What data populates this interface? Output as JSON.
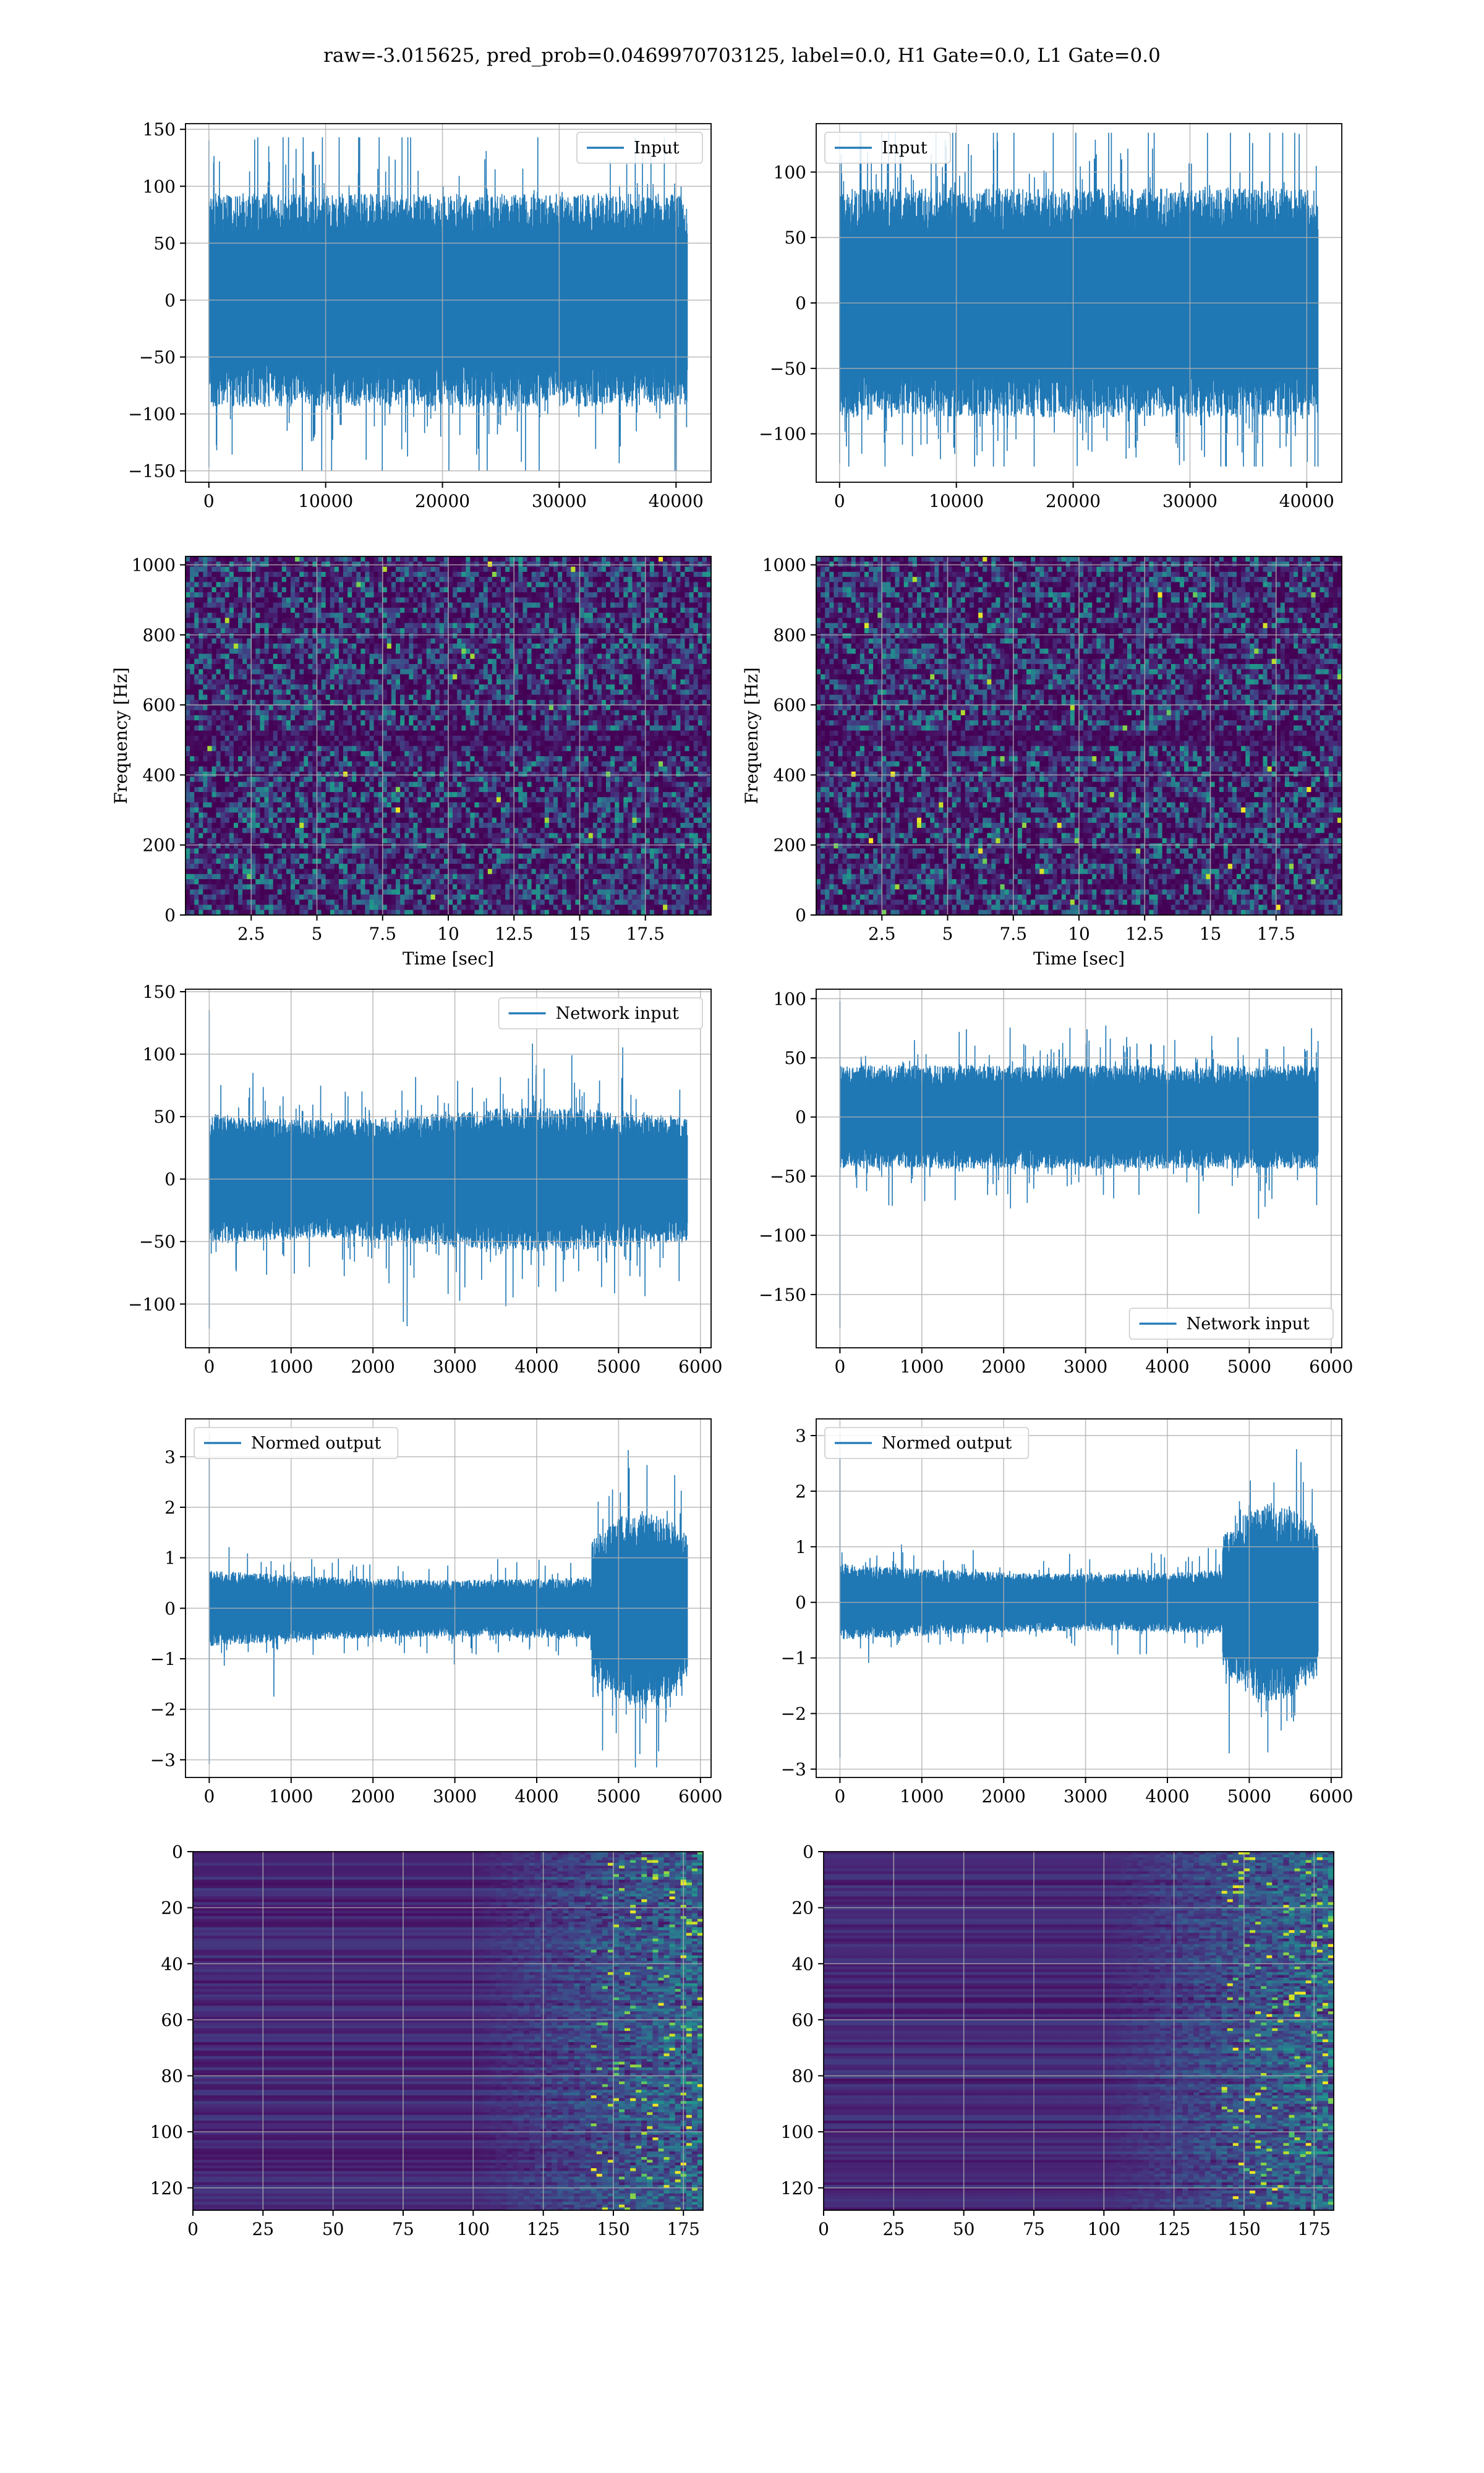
{
  "figure": {
    "suptitle": "raw=-3.015625, pred_prob=0.0469970703125, label=0.0, H1 Gate=0.0, L1 Gate=0.0"
  },
  "colors": {
    "line": "#1f77b4",
    "grid": "#b0b0b0",
    "viridis": [
      "#440154",
      "#482878",
      "#3e4989",
      "#31688e",
      "#26828e",
      "#1f9e89",
      "#35b779",
      "#6ece58",
      "#b5de2b",
      "#fde725"
    ]
  },
  "chart_data": [
    {
      "id": "p1",
      "type": "line",
      "legend": [
        "Input"
      ],
      "legend_loc": "upper right",
      "xlim": [
        -2000,
        43000
      ],
      "ylim": [
        -160,
        155
      ],
      "xticks": [
        0,
        10000,
        20000,
        30000,
        40000
      ],
      "yticks": [
        -150,
        -100,
        -50,
        0,
        50,
        100,
        150
      ],
      "xlabel": "",
      "ylabel": "",
      "grid": true,
      "signal": {
        "n": 40960,
        "x_start": 0,
        "x_end": 40960,
        "band": 75,
        "ymin": -150,
        "ymax": 143
      }
    },
    {
      "id": "p2",
      "type": "line",
      "legend": [
        "Input"
      ],
      "legend_loc": "upper left",
      "xlim": [
        -2000,
        43000
      ],
      "ylim": [
        -137,
        137
      ],
      "xticks": [
        0,
        10000,
        20000,
        30000,
        40000
      ],
      "yticks": [
        -100,
        -50,
        0,
        50,
        100
      ],
      "xlabel": "",
      "ylabel": "",
      "grid": true,
      "signal": {
        "n": 40960,
        "x_start": 0,
        "x_end": 40960,
        "band": 70,
        "ymin": -125,
        "ymax": 130
      }
    },
    {
      "id": "p3",
      "type": "heatmap",
      "xlim": [
        0,
        20
      ],
      "ylim": [
        0,
        1024
      ],
      "xticks": [
        2.5,
        5.0,
        7.5,
        10.0,
        12.5,
        15.0,
        17.5
      ],
      "yticks": [
        0,
        200,
        400,
        600,
        800,
        1000
      ],
      "xlabel": "Time [sec]",
      "ylabel": "Frequency [Hz]",
      "grid": true,
      "colormap": "viridis"
    },
    {
      "id": "p4",
      "type": "heatmap",
      "xlim": [
        0,
        20
      ],
      "ylim": [
        0,
        1024
      ],
      "xticks": [
        2.5,
        5.0,
        7.5,
        10.0,
        12.5,
        15.0,
        17.5
      ],
      "yticks": [
        0,
        200,
        400,
        600,
        800,
        1000
      ],
      "xlabel": "Time [sec]",
      "ylabel": "Frequency [Hz]",
      "grid": true,
      "colormap": "viridis"
    },
    {
      "id": "p5",
      "type": "line",
      "legend": [
        "Network input"
      ],
      "legend_loc": "upper right",
      "xlim": [
        -290,
        6130
      ],
      "ylim": [
        -135,
        152
      ],
      "xticks": [
        0,
        1000,
        2000,
        3000,
        4000,
        5000,
        6000
      ],
      "yticks": [
        -100,
        -50,
        0,
        50,
        100,
        150
      ],
      "xlabel": "",
      "ylabel": "",
      "grid": true,
      "signal": {
        "n": 5840,
        "x_start": 0,
        "x_end": 5840,
        "band": 40,
        "ymin": -122,
        "ymax": 138
      }
    },
    {
      "id": "p6",
      "type": "line",
      "legend": [
        "Network input"
      ],
      "legend_loc": "lower right",
      "xlim": [
        -290,
        6130
      ],
      "ylim": [
        -195,
        108
      ],
      "xticks": [
        0,
        1000,
        2000,
        3000,
        4000,
        5000,
        6000
      ],
      "yticks": [
        -150,
        -100,
        -50,
        0,
        50,
        100
      ],
      "xlabel": "",
      "ylabel": "",
      "grid": true,
      "signal": {
        "n": 5840,
        "x_start": 0,
        "x_end": 5840,
        "band": 35,
        "ymin": -182,
        "ymax": 100
      }
    },
    {
      "id": "p7",
      "type": "line",
      "legend": [
        "Normed output"
      ],
      "legend_loc": "upper left",
      "xlim": [
        -290,
        6130
      ],
      "ylim": [
        -3.35,
        3.75
      ],
      "xticks": [
        0,
        1000,
        2000,
        3000,
        4000,
        5000,
        6000
      ],
      "yticks": [
        -3,
        -2,
        -1,
        0,
        1,
        2,
        3
      ],
      "xlabel": "",
      "ylabel": "",
      "grid": true,
      "signal": {
        "n": 5840,
        "x_start": 0,
        "x_end": 5840,
        "band": 0.6,
        "ymin": -3.15,
        "ymax": 3.52
      }
    },
    {
      "id": "p8",
      "type": "line",
      "legend": [
        "Normed output"
      ],
      "legend_loc": "upper left",
      "xlim": [
        -290,
        6130
      ],
      "ylim": [
        -3.15,
        3.3
      ],
      "xticks": [
        0,
        1000,
        2000,
        3000,
        4000,
        5000,
        6000
      ],
      "yticks": [
        -3,
        -2,
        -1,
        0,
        1,
        2,
        3
      ],
      "xlabel": "",
      "ylabel": "",
      "grid": true,
      "signal": {
        "n": 5840,
        "x_start": 0,
        "x_end": 5840,
        "band": 0.55,
        "ymin": -2.85,
        "ymax": 3.1
      }
    },
    {
      "id": "p9",
      "type": "heatmap",
      "xlim": [
        0,
        182
      ],
      "ylim": [
        128,
        0
      ],
      "xticks": [
        0,
        25,
        50,
        75,
        100,
        125,
        150,
        175
      ],
      "yticks": [
        0,
        20,
        40,
        60,
        80,
        100,
        120
      ],
      "xlabel": "",
      "ylabel": "",
      "grid": true,
      "colormap": "viridis"
    },
    {
      "id": "p10",
      "type": "heatmap",
      "xlim": [
        0,
        182
      ],
      "ylim": [
        128,
        0
      ],
      "xticks": [
        0,
        25,
        50,
        75,
        100,
        125,
        150,
        175
      ],
      "yticks": [
        0,
        20,
        40,
        60,
        80,
        100,
        120
      ],
      "xlabel": "",
      "ylabel": "",
      "grid": true,
      "colormap": "viridis"
    }
  ]
}
